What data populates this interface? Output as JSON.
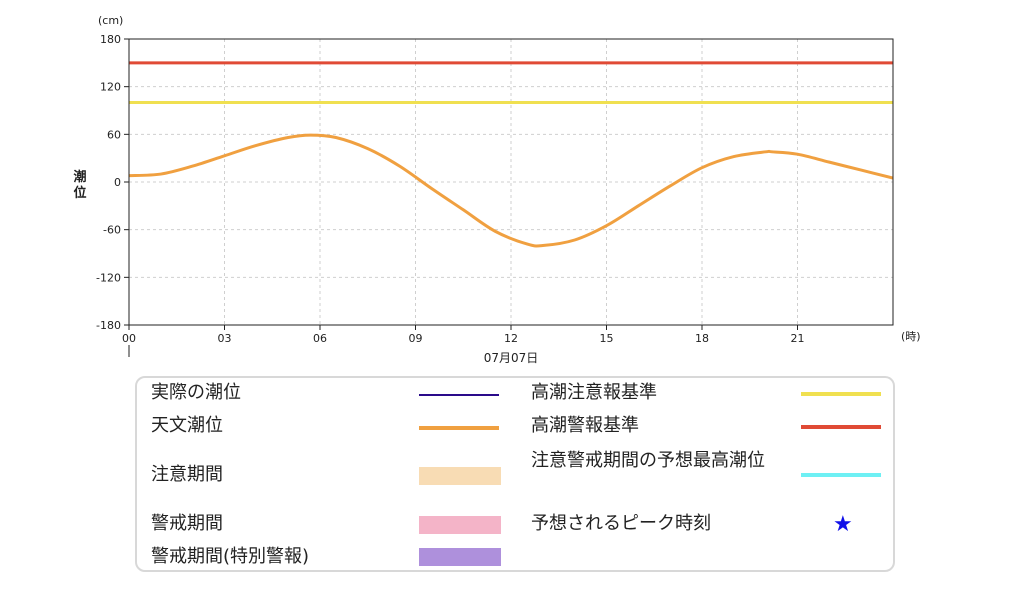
{
  "chart_data": {
    "type": "line",
    "y_unit": "(cm)",
    "x_unit": "(時)",
    "ylabel": "潮位",
    "xlabel": "07月07日",
    "ylim": [
      -180,
      180
    ],
    "y_ticks": [
      180,
      120,
      60,
      0,
      -60,
      -120,
      -180
    ],
    "y_tick_labels": [
      "180",
      "120",
      "60",
      "0",
      "-60",
      "-120",
      "-180"
    ],
    "xlim": [
      0,
      24
    ],
    "x_ticks": [
      0,
      3,
      6,
      9,
      12,
      15,
      18,
      21
    ],
    "x_tick_labels": [
      "00",
      "03",
      "06",
      "09",
      "12",
      "15",
      "18",
      "21"
    ],
    "grid": true,
    "series": [
      {
        "name": "天文潮位",
        "color": "#f0a040",
        "x": [
          0,
          1,
          2,
          3,
          4,
          5,
          5.7,
          6.5,
          7.5,
          8.5,
          9.5,
          10.5,
          11.5,
          12.5,
          13,
          14,
          15,
          16,
          17,
          18,
          19,
          20,
          20.2,
          21,
          22,
          23,
          24
        ],
        "y": [
          8,
          10,
          20,
          33,
          46,
          56,
          59,
          56,
          42,
          20,
          -8,
          -35,
          -62,
          -78,
          -80,
          -73,
          -55,
          -30,
          -5,
          18,
          32,
          38,
          38,
          35,
          25,
          15,
          5
        ]
      },
      {
        "name": "高潮注意報基準",
        "color": "#f0e050",
        "x": [
          0,
          24
        ],
        "y": [
          100,
          100
        ]
      },
      {
        "name": "高潮警報基準",
        "color": "#e04a35",
        "x": [
          0,
          24
        ],
        "y": [
          150,
          150
        ]
      }
    ]
  },
  "legend": {
    "items": [
      {
        "label": "実際の潮位",
        "color": "#2a0a8a"
      },
      {
        "label": "天文潮位",
        "color": "#f0a040"
      },
      {
        "label": "注意期間",
        "color": "#f8dcb4"
      },
      {
        "label": "警戒期間",
        "color": "#f4b4c8"
      },
      {
        "label": "警戒期間(特別警報)",
        "color": "#ae90dc"
      },
      {
        "label": "高潮注意報基準",
        "color": "#f0e050"
      },
      {
        "label": "高潮警報基準",
        "color": "#e04a35"
      },
      {
        "label": "注意警戒期間の予想最高潮位",
        "color": "#6ef0f4"
      },
      {
        "label": "予想されるピーク時刻",
        "color": "#1010e8",
        "icon": "star-icon"
      }
    ],
    "star_glyph": "★"
  }
}
